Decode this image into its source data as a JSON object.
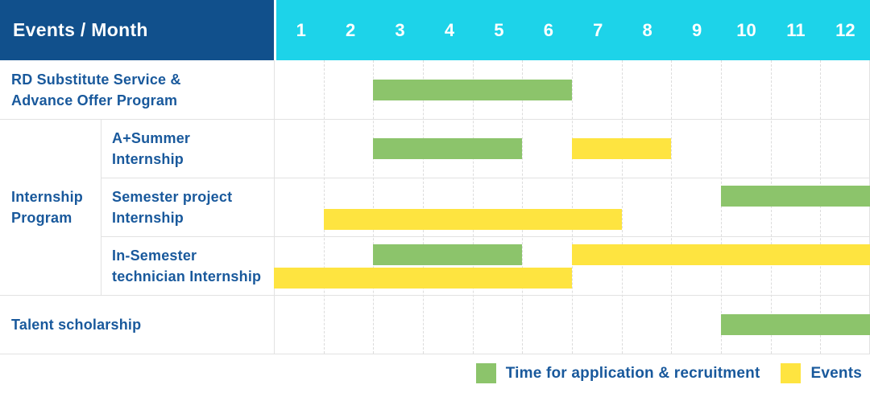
{
  "header": {
    "label": "Events / Month",
    "months": [
      "1",
      "2",
      "3",
      "4",
      "5",
      "6",
      "7",
      "8",
      "9",
      "10",
      "11",
      "12"
    ]
  },
  "colors": {
    "header_bg": "#11508c",
    "months_bg": "#1dd3e9",
    "text_blue": "#19599c",
    "recruitment": "#8cc46b",
    "event": "#fee440",
    "grid_solid": "#e2e2e2",
    "grid_dashed": "#dcdcdc"
  },
  "legend": [
    {
      "series": "recruitment",
      "label": "Time for application & recruitment"
    },
    {
      "series": "event",
      "label": "Events"
    }
  ],
  "chart_data": {
    "type": "gantt",
    "title": "Events / Month",
    "xlabel": "Month",
    "x_ticks": [
      1,
      2,
      3,
      4,
      5,
      6,
      7,
      8,
      9,
      10,
      11,
      12
    ],
    "x_range": [
      1,
      12
    ],
    "series": [
      {
        "name": "Time for application & recruitment",
        "key": "recruitment",
        "color": "#8cc46b"
      },
      {
        "name": "Events",
        "key": "event",
        "color": "#fee440"
      }
    ],
    "group_label_lines": [
      "Internship",
      "Program"
    ],
    "rows": [
      {
        "group": null,
        "label": "RD Substitute Service & Advance Offer Program",
        "label_lines": [
          "RD Substitute Service &",
          "Advance Offer Program"
        ],
        "bars": [
          {
            "series": "recruitment",
            "start_month": 3,
            "end_month": 6,
            "track": "middle"
          }
        ]
      },
      {
        "group": "Internship Program",
        "label": "A+Summer Internship",
        "label_lines": [
          "A+Summer",
          "Internship"
        ],
        "bars": [
          {
            "series": "recruitment",
            "start_month": 3,
            "end_month": 5,
            "track": "middle"
          },
          {
            "series": "event",
            "start_month": 7,
            "end_month": 8,
            "track": "middle"
          }
        ]
      },
      {
        "group": "Internship Program",
        "label": "Semester project Internship",
        "label_lines": [
          "Semester project",
          "Internship"
        ],
        "bars": [
          {
            "series": "recruitment",
            "start_month": 10,
            "end_month": 12,
            "track": "upper"
          },
          {
            "series": "event",
            "start_month": 2,
            "end_month": 7,
            "track": "lower"
          }
        ]
      },
      {
        "group": "Internship Program",
        "label": "In-Semester technician Internship",
        "label_lines": [
          "In-Semester",
          "technician Internship"
        ],
        "bars": [
          {
            "series": "recruitment",
            "start_month": 3,
            "end_month": 5,
            "track": "upper"
          },
          {
            "series": "event",
            "start_month": 7,
            "end_month": 12,
            "track": "upper"
          },
          {
            "series": "event",
            "start_month": 1,
            "end_month": 6,
            "track": "lower"
          }
        ]
      },
      {
        "group": null,
        "label": "Talent scholarship",
        "label_lines": [
          "Talent scholarship"
        ],
        "bars": [
          {
            "series": "recruitment",
            "start_month": 10,
            "end_month": 12,
            "track": "middle"
          }
        ]
      }
    ]
  }
}
